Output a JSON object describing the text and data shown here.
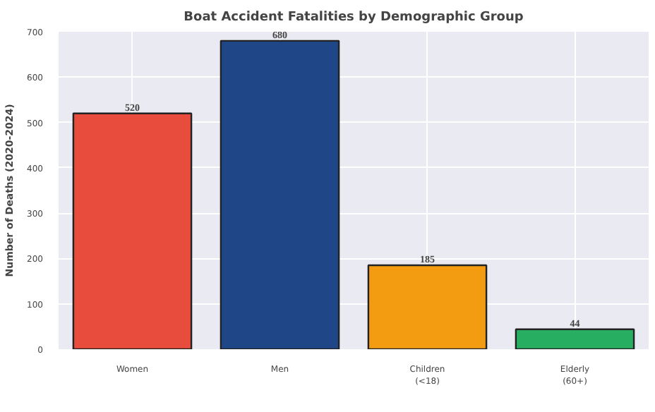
{
  "chart_data": {
    "type": "bar",
    "title": "Boat Accident Fatalities by Demographic Group",
    "ylabel": "Number of Deaths (2020-2024)",
    "categories": [
      "Women",
      "Men",
      "Children\n(<18)",
      "Elderly\n(60+)"
    ],
    "values": [
      520,
      680,
      185,
      44
    ],
    "colors": [
      "#e74c3c",
      "#1f4788",
      "#f39c12",
      "#27ae60"
    ],
    "ylim": [
      0,
      700
    ],
    "yticks": [
      0,
      100,
      200,
      300,
      400,
      500,
      600,
      700
    ],
    "grid": true,
    "data_labels": true
  }
}
